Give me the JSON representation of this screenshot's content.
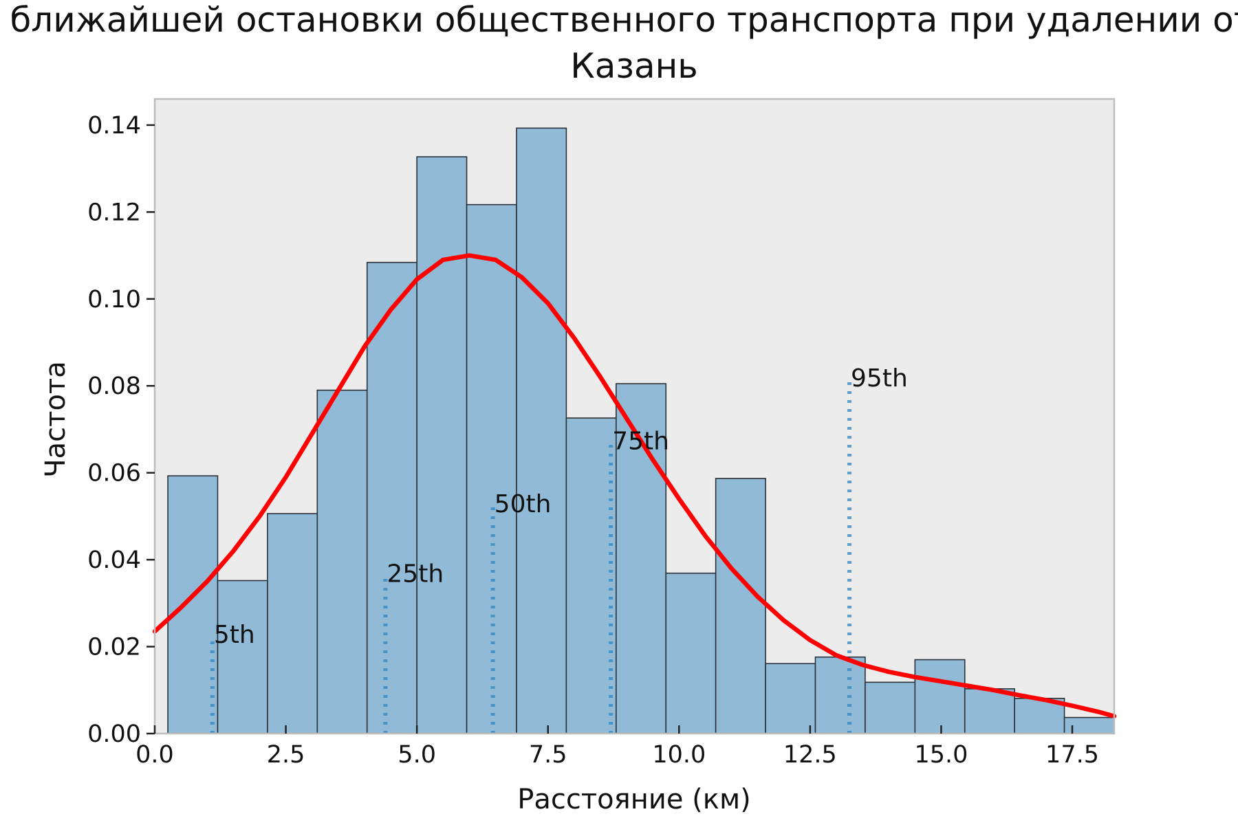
{
  "chart_data": {
    "type": "bar",
    "title_line1": "Расстояние до ближайшей остановки общественного транспорта при удалении от центра города",
    "title_line2": "Казань",
    "xlabel": "Расстояние (км)",
    "ylabel": "Частота",
    "xlim": [
      0.0,
      18.3
    ],
    "ylim": [
      0.0,
      0.146
    ],
    "xticks": [
      "0.0",
      "2.5",
      "5.0",
      "7.5",
      "10.0",
      "12.5",
      "15.0",
      "17.5"
    ],
    "xtick_values": [
      0.0,
      2.5,
      5.0,
      7.5,
      10.0,
      12.5,
      15.0,
      17.5
    ],
    "yticks": [
      "0.00",
      "0.02",
      "0.04",
      "0.06",
      "0.08",
      "0.10",
      "0.12",
      "0.14"
    ],
    "ytick_values": [
      0.0,
      0.02,
      0.04,
      0.06,
      0.08,
      0.1,
      0.12,
      0.14
    ],
    "bin_edges": [
      0.25,
      1.2,
      2.15,
      3.1,
      4.05,
      5.0,
      5.95,
      6.9,
      7.85,
      8.8,
      9.75,
      10.7,
      11.65,
      12.6,
      13.55,
      14.5,
      15.45,
      16.4,
      17.35,
      18.3
    ],
    "values": [
      0.0593,
      0.0352,
      0.0506,
      0.079,
      0.1084,
      0.1327,
      0.1217,
      0.1393,
      0.0726,
      0.0805,
      0.0369,
      0.0587,
      0.0161,
      0.0176,
      0.0118,
      0.017,
      0.0103,
      0.0081,
      0.0037
    ],
    "kde_curve": {
      "x": [
        0.0,
        0.5,
        1.0,
        1.5,
        2.0,
        2.5,
        3.0,
        3.5,
        4.0,
        4.5,
        5.0,
        5.5,
        6.0,
        6.5,
        7.0,
        7.5,
        8.0,
        8.5,
        9.0,
        9.5,
        10.0,
        10.5,
        11.0,
        11.5,
        12.0,
        12.5,
        13.0,
        13.5,
        14.0,
        14.5,
        15.0,
        15.5,
        16.0,
        16.5,
        17.0,
        17.5,
        18.0,
        18.3
      ],
      "y": [
        0.0235,
        0.029,
        0.035,
        0.042,
        0.05,
        0.059,
        0.069,
        0.079,
        0.089,
        0.0975,
        0.1045,
        0.109,
        0.11,
        0.109,
        0.105,
        0.099,
        0.091,
        0.082,
        0.0725,
        0.063,
        0.054,
        0.0455,
        0.038,
        0.0315,
        0.026,
        0.0215,
        0.018,
        0.0158,
        0.0142,
        0.013,
        0.012,
        0.011,
        0.01,
        0.0088,
        0.0077,
        0.0064,
        0.005,
        0.004
      ]
    },
    "percentiles": [
      {
        "label": "5th",
        "x": 1.1,
        "y": 0.0225
      },
      {
        "label": "25th",
        "x": 4.4,
        "y": 0.0365
      },
      {
        "label": "50th",
        "x": 6.45,
        "y": 0.0525
      },
      {
        "label": "75th",
        "x": 8.7,
        "y": 0.067
      },
      {
        "label": "95th",
        "x": 13.25,
        "y": 0.0815
      }
    ],
    "grid": false,
    "colors": {
      "bar_fill": "#90bad6",
      "bar_edge": "#2b3138",
      "curve": "#ff0000",
      "percentile_line": "#2e86c1",
      "plot_background": "#ececec",
      "frame": "#bdbdbd"
    }
  }
}
